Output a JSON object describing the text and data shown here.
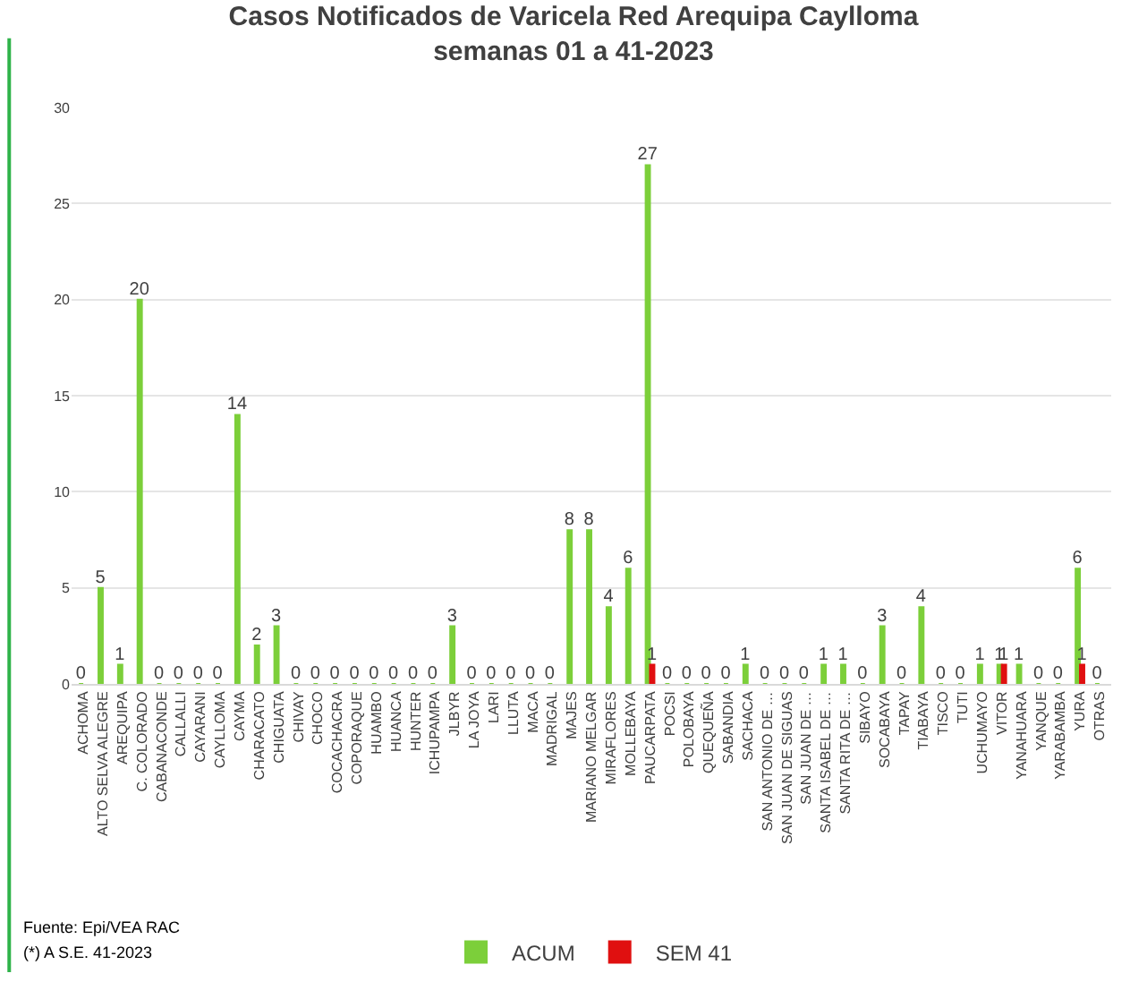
{
  "chart_data": {
    "type": "bar",
    "title": "Casos Notificados de Varicela Red Arequipa Caylloma",
    "subtitle": "semanas 01 a 41-2023",
    "categories": [
      "ACHOMA",
      "ALTO SELVA ALEGRE",
      "AREQUIPA",
      "C. COLORADO",
      "CABANACONDE",
      "CALLALLI",
      "CAYARANI",
      "CAYLLOMA",
      "CAYMA",
      "CHARACATO",
      "CHIGUATA",
      "CHIVAY",
      "CHOCO",
      "COCACHACRA",
      "COPORAQUE",
      "HUAMBO",
      "HUANCA",
      "HUNTER",
      "ICHUPAMPA",
      "JLBYR",
      "LA JOYA",
      "LARI",
      "LLUTA",
      "MACA",
      "MADRIGAL",
      "MAJES",
      "MARIANO MELGAR",
      "MIRAFLORES",
      "MOLLEBAYA",
      "PAUCARPATA",
      "POCSI",
      "POLOBAYA",
      "QUEQUEÑA",
      "SABANDIA",
      "SACHACA",
      "SAN ANTONIO DE …",
      "SAN JUAN DE SIGUAS",
      "SAN JUAN DE …",
      "SANTA ISABEL DE …",
      "SANTA RITA DE …",
      "SIBAYO",
      "SOCABAYA",
      "TAPAY",
      "TIABAYA",
      "TISCO",
      "TUTI",
      "UCHUMAYO",
      "VITOR",
      "YANAHUARA",
      "YANQUE",
      "YARABAMBA",
      "YURA",
      "OTRAS"
    ],
    "series": [
      {
        "name": "ACUM",
        "color": "#7ccf3a",
        "values": [
          0,
          5,
          1,
          20,
          0,
          0,
          0,
          0,
          14,
          2,
          3,
          0,
          0,
          0,
          0,
          0,
          0,
          0,
          0,
          3,
          0,
          0,
          0,
          0,
          0,
          8,
          8,
          4,
          6,
          27,
          0,
          0,
          0,
          0,
          1,
          0,
          0,
          0,
          1,
          1,
          0,
          3,
          0,
          4,
          0,
          0,
          1,
          1,
          1,
          0,
          0,
          6,
          0
        ]
      },
      {
        "name": "SEM 41",
        "color": "#e01010",
        "values": [
          null,
          null,
          null,
          null,
          null,
          null,
          null,
          null,
          null,
          null,
          null,
          null,
          null,
          null,
          null,
          null,
          null,
          null,
          null,
          null,
          null,
          null,
          null,
          null,
          null,
          null,
          null,
          null,
          null,
          1,
          null,
          null,
          null,
          null,
          null,
          null,
          null,
          null,
          null,
          null,
          null,
          null,
          null,
          null,
          null,
          null,
          null,
          1,
          null,
          null,
          null,
          1,
          null
        ]
      }
    ],
    "ylim": [
      0,
      30
    ],
    "yticks": [
      0,
      5,
      10,
      15,
      20,
      25,
      30
    ],
    "grid": "y",
    "legend": "bottom",
    "data_labels": true,
    "annotations": [
      "Fuente: Epi/VEA RAC",
      "(*) A S.E. 41-2023"
    ]
  }
}
